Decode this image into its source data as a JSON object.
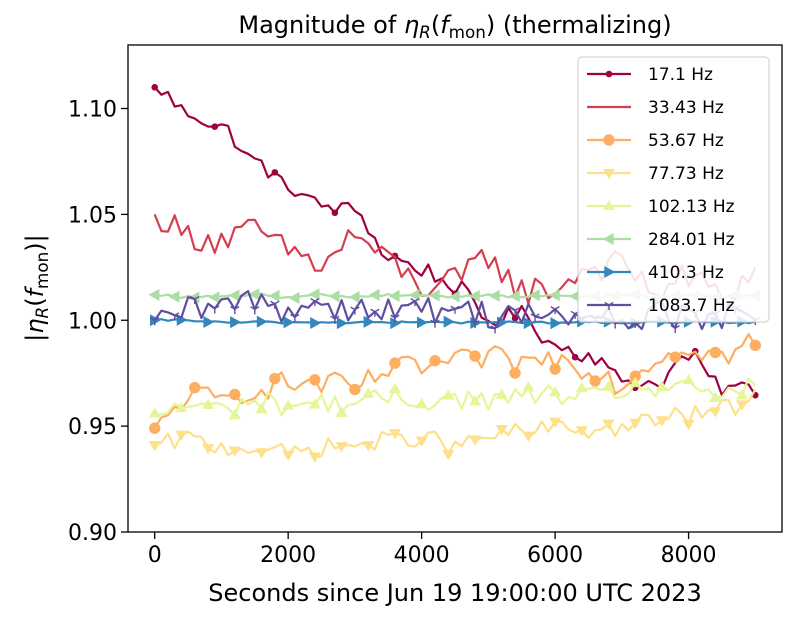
{
  "chart_data": {
    "type": "line",
    "title": "Magnitude of η_R(f_mon) (thermalizing)",
    "xlabel": "Seconds since Jun 19 19:00:00 UTC 2023",
    "ylabel": "|η_R(f_mon)|",
    "xlim": [
      -400,
      9400
    ],
    "ylim": [
      0.9,
      1.13
    ],
    "xticks": [
      0,
      2000,
      4000,
      6000,
      8000
    ],
    "yticks": [
      0.9,
      0.95,
      1.0,
      1.05,
      1.1
    ],
    "legend_position": "upper right",
    "sample_interval_s": 100,
    "series": [
      {
        "name": "17.1 Hz",
        "color": "#9e0142",
        "marker": "dot",
        "points": [
          [
            0,
            1.11
          ],
          [
            500,
            1.098
          ],
          [
            1000,
            1.091
          ],
          [
            1500,
            1.075
          ],
          [
            2000,
            1.063
          ],
          [
            2500,
            1.054
          ],
          [
            3000,
            1.052
          ],
          [
            3500,
            1.03
          ],
          [
            4000,
            1.024
          ],
          [
            4500,
            1.016
          ],
          [
            5000,
            1.0
          ],
          [
            5500,
            1.003
          ],
          [
            6000,
            0.988
          ],
          [
            6500,
            0.984
          ],
          [
            7000,
            0.972
          ],
          [
            7500,
            0.97
          ],
          [
            8000,
            0.983
          ],
          [
            8500,
            0.968
          ],
          [
            9000,
            0.968
          ]
        ]
      },
      {
        "name": "33.43 Hz",
        "color": "#d53e4f",
        "marker": "none",
        "points": [
          [
            0,
            1.05
          ],
          [
            500,
            1.04
          ],
          [
            1000,
            1.038
          ],
          [
            1500,
            1.042
          ],
          [
            2000,
            1.033
          ],
          [
            2500,
            1.026
          ],
          [
            3000,
            1.04
          ],
          [
            3500,
            1.028
          ],
          [
            4000,
            1.016
          ],
          [
            4500,
            1.018
          ],
          [
            5000,
            1.03
          ],
          [
            5500,
            1.014
          ],
          [
            6000,
            1.015
          ],
          [
            6500,
            1.025
          ],
          [
            7000,
            1.026
          ],
          [
            7500,
            1.014
          ],
          [
            8000,
            1.02
          ],
          [
            8500,
            1.012
          ],
          [
            9000,
            1.022
          ]
        ]
      },
      {
        "name": "53.67 Hz",
        "color": "#fdae61",
        "marker": "circle",
        "points": [
          [
            0,
            0.949
          ],
          [
            500,
            0.964
          ],
          [
            1000,
            0.962
          ],
          [
            1500,
            0.968
          ],
          [
            2000,
            0.97
          ],
          [
            2500,
            0.97
          ],
          [
            3000,
            0.968
          ],
          [
            3500,
            0.976
          ],
          [
            4000,
            0.978
          ],
          [
            4500,
            0.98
          ],
          [
            5000,
            0.982
          ],
          [
            5500,
            0.98
          ],
          [
            6000,
            0.982
          ],
          [
            6500,
            0.978
          ],
          [
            7000,
            0.97
          ],
          [
            7500,
            0.982
          ],
          [
            8000,
            0.988
          ],
          [
            8500,
            0.983
          ],
          [
            9000,
            0.99
          ]
        ]
      },
      {
        "name": "77.73 Hz",
        "color": "#fee08b",
        "marker": "triangle-down",
        "points": [
          [
            0,
            0.941
          ],
          [
            500,
            0.944
          ],
          [
            1000,
            0.94
          ],
          [
            1500,
            0.94
          ],
          [
            2000,
            0.937
          ],
          [
            2500,
            0.94
          ],
          [
            3000,
            0.941
          ],
          [
            3500,
            0.943
          ],
          [
            4000,
            0.945
          ],
          [
            4500,
            0.94
          ],
          [
            5000,
            0.945
          ],
          [
            5500,
            0.947
          ],
          [
            6000,
            0.949
          ],
          [
            6500,
            0.948
          ],
          [
            7000,
            0.949
          ],
          [
            7500,
            0.953
          ],
          [
            8000,
            0.955
          ],
          [
            8500,
            0.958
          ],
          [
            9000,
            0.963
          ]
        ]
      },
      {
        "name": "102.13 Hz",
        "color": "#e6f598",
        "marker": "triangle-up",
        "points": [
          [
            0,
            0.956
          ],
          [
            500,
            0.96
          ],
          [
            1000,
            0.958
          ],
          [
            1500,
            0.962
          ],
          [
            2000,
            0.96
          ],
          [
            2500,
            0.961
          ],
          [
            3000,
            0.961
          ],
          [
            3500,
            0.963
          ],
          [
            4000,
            0.962
          ],
          [
            4500,
            0.963
          ],
          [
            5000,
            0.962
          ],
          [
            5500,
            0.964
          ],
          [
            6000,
            0.965
          ],
          [
            6500,
            0.963
          ],
          [
            7000,
            0.967
          ],
          [
            7500,
            0.968
          ],
          [
            8000,
            0.967
          ],
          [
            8500,
            0.966
          ],
          [
            9000,
            0.968
          ]
        ]
      },
      {
        "name": "284.01 Hz",
        "color": "#abdda4",
        "marker": "triangle-left",
        "points": [
          [
            0,
            1.012
          ],
          [
            500,
            1.011
          ],
          [
            1000,
            1.011
          ],
          [
            1500,
            1.012
          ],
          [
            2000,
            1.011
          ],
          [
            2500,
            1.012
          ],
          [
            3000,
            1.011
          ],
          [
            3500,
            1.012
          ],
          [
            4000,
            1.012
          ],
          [
            4500,
            1.011
          ],
          [
            5000,
            1.012
          ],
          [
            5500,
            1.011
          ],
          [
            6000,
            1.012
          ],
          [
            6500,
            1.011
          ],
          [
            7000,
            1.012
          ],
          [
            7500,
            1.011
          ],
          [
            8000,
            1.012
          ],
          [
            8500,
            1.011
          ],
          [
            9000,
            1.012
          ]
        ]
      },
      {
        "name": "410.3 Hz",
        "color": "#3288bd",
        "marker": "triangle-right",
        "points": [
          [
            0,
            1.0
          ],
          [
            500,
            1.0
          ],
          [
            1000,
            0.999
          ],
          [
            1500,
            0.999
          ],
          [
            2000,
            0.999
          ],
          [
            2500,
            0.999
          ],
          [
            3000,
            0.999
          ],
          [
            3500,
            0.999
          ],
          [
            4000,
            0.999
          ],
          [
            4500,
            0.999
          ],
          [
            5000,
            0.999
          ],
          [
            5500,
            0.999
          ],
          [
            6000,
            0.999
          ],
          [
            6500,
            0.999
          ],
          [
            7000,
            0.999
          ],
          [
            7500,
            0.999
          ],
          [
            8000,
            0.999
          ],
          [
            8500,
            0.999
          ],
          [
            9000,
            0.999
          ]
        ]
      },
      {
        "name": "1083.7 Hz",
        "color": "#5e4fa2",
        "marker": "tri",
        "points": [
          [
            0,
            1.0
          ],
          [
            500,
            1.004
          ],
          [
            1000,
            1.006
          ],
          [
            1500,
            1.01
          ],
          [
            2000,
            1.005
          ],
          [
            2500,
            1.008
          ],
          [
            3000,
            1.006
          ],
          [
            3500,
            1.005
          ],
          [
            4000,
            1.004
          ],
          [
            4500,
            1.006
          ],
          [
            5000,
            1.003
          ],
          [
            5500,
            1.004
          ],
          [
            6000,
            1.0
          ],
          [
            6500,
            1.002
          ],
          [
            7000,
            1.0
          ],
          [
            7500,
            1.003
          ],
          [
            8000,
            1.002
          ],
          [
            8500,
            1.001
          ],
          [
            9000,
            1.0
          ]
        ]
      }
    ]
  }
}
